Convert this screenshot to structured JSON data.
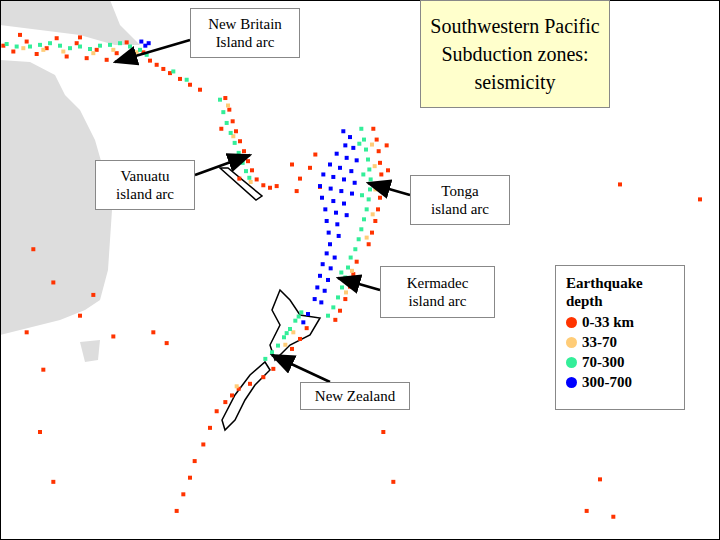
{
  "chart_data": {
    "type": "scatter",
    "title": "Southwestern Pacific\nSubduction zones:\nseismicity",
    "xlim": [
      133,
      241
    ],
    "ylim": [
      -65,
      0
    ],
    "xticks": [
      133,
      150,
      180,
      210,
      241
    ],
    "yticks": [
      -65,
      -30,
      0
    ],
    "grid": true,
    "tick_labels": false,
    "legend": "right",
    "legend_title": "Earthquake\ndepth",
    "annotations": [
      "New Britain\nIsland arc",
      "Vanuatu\nisland arc",
      "Tonga\nisland arc",
      "Kermadec\nisland arc",
      "New Zealand"
    ],
    "series": [
      {
        "name": "0-33 km",
        "color": "#ff3300",
        "marker": "square",
        "values": [
          [
            133.5,
            -5.5
          ],
          [
            135,
            -6.2
          ],
          [
            137,
            -5.0
          ],
          [
            138.5,
            -6.5
          ],
          [
            140,
            -5.8
          ],
          [
            141.5,
            -4.6
          ],
          [
            143,
            -6.8
          ],
          [
            144.5,
            -5.2
          ],
          [
            146,
            -7.0
          ],
          [
            147.5,
            -6.0
          ],
          [
            149,
            -7.2
          ],
          [
            150.5,
            -6.4
          ],
          [
            152,
            -5.1
          ],
          [
            153,
            -6.9
          ],
          [
            154.5,
            -6.3
          ],
          [
            155.5,
            -7.3
          ],
          [
            156.5,
            -7.8
          ],
          [
            157.5,
            -8.3
          ],
          [
            136,
            -4.2
          ],
          [
            145,
            -4.5
          ],
          [
            158.5,
            -8.8
          ],
          [
            160,
            -9.5
          ],
          [
            161.5,
            -10.2
          ],
          [
            163,
            -10.8
          ],
          [
            166.8,
            -11.8
          ],
          [
            167.4,
            -13.2
          ],
          [
            167.9,
            -14.6
          ],
          [
            168.4,
            -15.8
          ],
          [
            169,
            -17
          ],
          [
            169.6,
            -18.2
          ],
          [
            170.2,
            -19.4
          ],
          [
            170.8,
            -20.5
          ],
          [
            171.5,
            -21.6
          ],
          [
            172.5,
            -22.3
          ],
          [
            173.5,
            -22.6
          ],
          [
            174.5,
            -22.4
          ],
          [
            166.2,
            -15.5
          ],
          [
            168.9,
            -21.5
          ],
          [
            176.8,
            -19.8
          ],
          [
            178,
            -21.5
          ],
          [
            179.5,
            -20.2
          ],
          [
            181,
            -22.5
          ],
          [
            177.5,
            -23
          ],
          [
            180.3,
            -18.6
          ],
          [
            189,
            -15.5
          ],
          [
            189.5,
            -16.8
          ],
          [
            189.8,
            -18.2
          ],
          [
            190,
            -19.6
          ],
          [
            190.2,
            -21
          ],
          [
            190.2,
            -22.4
          ],
          [
            190,
            -23.8
          ],
          [
            189.7,
            -25.2
          ],
          [
            189.3,
            -26.6
          ],
          [
            188.8,
            -28
          ],
          [
            188.3,
            -29.4
          ],
          [
            191,
            -17.5
          ],
          [
            191.2,
            -20.5
          ],
          [
            186.5,
            -31.5
          ],
          [
            186,
            -33
          ],
          [
            185.5,
            -34.5
          ],
          [
            184.8,
            -36
          ],
          [
            184,
            -37.4
          ],
          [
            183.3,
            -38.5
          ],
          [
            179,
            -39.5
          ],
          [
            178,
            -40.8
          ],
          [
            176.8,
            -42
          ],
          [
            175.5,
            -43.2
          ],
          [
            174,
            -44.4
          ],
          [
            172.5,
            -45.4
          ],
          [
            170.5,
            -46.2
          ],
          [
            168.8,
            -46.8
          ],
          [
            167.8,
            -47.6
          ],
          [
            166.8,
            -48.4
          ],
          [
            165.5,
            -49.5
          ],
          [
            164.5,
            -51.5
          ],
          [
            163.5,
            -53.5
          ],
          [
            162.2,
            -55.5
          ],
          [
            161.5,
            -57.5
          ],
          [
            160.5,
            -59.5
          ],
          [
            159.5,
            -61.5
          ],
          [
            139,
            -52
          ],
          [
            141,
            -58
          ],
          [
            190.5,
            -52
          ],
          [
            192,
            -58
          ],
          [
            221,
            -61.5
          ],
          [
            225,
            -62.2
          ],
          [
            223,
            -57.7
          ],
          [
            226,
            -22.2
          ],
          [
            238,
            -24
          ],
          [
            138,
            -30
          ],
          [
            141,
            -34
          ],
          [
            145,
            -38
          ],
          [
            137,
            -40
          ],
          [
            139.5,
            -44.5
          ],
          [
            147,
            -35.5
          ],
          [
            150,
            -40.5
          ],
          [
            156,
            -40
          ],
          [
            158,
            -41.3
          ]
        ]
      },
      {
        "name": "33-70",
        "color": "#ffcc77",
        "marker": "square",
        "values": [
          [
            136.5,
            -5.8
          ],
          [
            139.5,
            -6.0
          ],
          [
            142.5,
            -6.2
          ],
          [
            147,
            -6.4
          ],
          [
            150,
            -6.0
          ],
          [
            153.5,
            -6.3
          ],
          [
            167.2,
            -12.7
          ],
          [
            168,
            -16.4
          ],
          [
            169.2,
            -18.9
          ],
          [
            170.6,
            -21.9
          ],
          [
            188.8,
            -17.4
          ],
          [
            189.2,
            -20
          ],
          [
            189.3,
            -22.8
          ],
          [
            188.9,
            -25.8
          ],
          [
            188,
            -28.6
          ],
          [
            185.8,
            -32.6
          ],
          [
            184.9,
            -35.2
          ],
          [
            177,
            -40
          ],
          [
            175.8,
            -41.5
          ],
          [
            168.5,
            -46.5
          ]
        ]
      },
      {
        "name": "70-300",
        "color": "#33ee99",
        "marker": "square",
        "values": [
          [
            134,
            -5.3
          ],
          [
            135.5,
            -5.6
          ],
          [
            137.5,
            -5.6
          ],
          [
            139,
            -5.4
          ],
          [
            140.5,
            -5.2
          ],
          [
            142,
            -5.5
          ],
          [
            143.5,
            -5.8
          ],
          [
            145,
            -5.6
          ],
          [
            146.5,
            -5.9
          ],
          [
            148,
            -5.5
          ],
          [
            149.5,
            -5.4
          ],
          [
            151,
            -5.2
          ],
          [
            152.5,
            -5.6
          ],
          [
            154,
            -6.0
          ],
          [
            155,
            -6.6
          ],
          [
            159,
            -8.6
          ],
          [
            161,
            -9.6
          ],
          [
            166,
            -12
          ],
          [
            166.5,
            -13.5
          ],
          [
            167,
            -14.8
          ],
          [
            167.6,
            -16
          ],
          [
            168.2,
            -17.2
          ],
          [
            168.8,
            -18.4
          ],
          [
            169.4,
            -19.6
          ],
          [
            169.9,
            -20.6
          ],
          [
            170.4,
            -21.4
          ],
          [
            187.2,
            -15.5
          ],
          [
            187.6,
            -16.8
          ],
          [
            187.9,
            -18
          ],
          [
            188.2,
            -19.2
          ],
          [
            188.4,
            -20.4
          ],
          [
            188.6,
            -21.6
          ],
          [
            188.5,
            -22.8
          ],
          [
            188.3,
            -24
          ],
          [
            188,
            -25.2
          ],
          [
            187.6,
            -26.4
          ],
          [
            187.2,
            -27.6
          ],
          [
            186.8,
            -28.8
          ],
          [
            186.3,
            -30
          ],
          [
            186.9,
            -17.3
          ],
          [
            187.5,
            -21
          ],
          [
            187.3,
            -23.5
          ],
          [
            185.6,
            -31
          ],
          [
            185.2,
            -32.2
          ],
          [
            184.8,
            -33.4
          ],
          [
            184.3,
            -34.6
          ],
          [
            183.7,
            -35.8
          ],
          [
            183,
            -37
          ],
          [
            182.2,
            -38
          ],
          [
            184.2,
            -32.8
          ],
          [
            178.2,
            -37.6
          ],
          [
            177.3,
            -38.6
          ],
          [
            176.5,
            -39.6
          ],
          [
            175.6,
            -40.6
          ],
          [
            174.7,
            -41.6
          ],
          [
            173.8,
            -42.4
          ],
          [
            172.8,
            -43.2
          ],
          [
            177.8,
            -38.1
          ],
          [
            176,
            -40.1
          ]
        ]
      },
      {
        "name": "300-700",
        "color": "#0000ff",
        "marker": "square",
        "values": [
          [
            154.2,
            -5.0
          ],
          [
            154.8,
            -5.5
          ],
          [
            155.3,
            -5.2
          ],
          [
            184.5,
            -15.8
          ],
          [
            185.5,
            -16.5
          ],
          [
            184.8,
            -17.5
          ],
          [
            186,
            -17.8
          ],
          [
            183.5,
            -18.5
          ],
          [
            185,
            -19
          ],
          [
            186.5,
            -19.3
          ],
          [
            182.5,
            -19.8
          ],
          [
            184,
            -20.2
          ],
          [
            185.7,
            -20.6
          ],
          [
            181.5,
            -21
          ],
          [
            183,
            -21.3
          ],
          [
            184.6,
            -21.6
          ],
          [
            186.2,
            -22
          ],
          [
            181,
            -22.4
          ],
          [
            182.6,
            -22.7
          ],
          [
            184.2,
            -23
          ],
          [
            185.8,
            -23.3
          ],
          [
            181.3,
            -23.8
          ],
          [
            183,
            -24.2
          ],
          [
            184.6,
            -24.5
          ],
          [
            181.8,
            -25.2
          ],
          [
            183.4,
            -25.6
          ],
          [
            185,
            -25.9
          ],
          [
            182,
            -26.6
          ],
          [
            183.6,
            -27
          ],
          [
            182.3,
            -28
          ],
          [
            183.8,
            -28.4
          ],
          [
            182.5,
            -29.4
          ],
          [
            182,
            -30.5
          ],
          [
            183.2,
            -31
          ],
          [
            181.4,
            -31.8
          ],
          [
            182.6,
            -32.3
          ],
          [
            181,
            -33.2
          ],
          [
            182.2,
            -33.7
          ],
          [
            180.6,
            -34.6
          ],
          [
            181.7,
            -35
          ],
          [
            180.2,
            -36
          ],
          [
            181.2,
            -36.4
          ],
          [
            179.2,
            -37.8
          ],
          [
            178.5,
            -38.8
          ]
        ]
      }
    ]
  }
}
